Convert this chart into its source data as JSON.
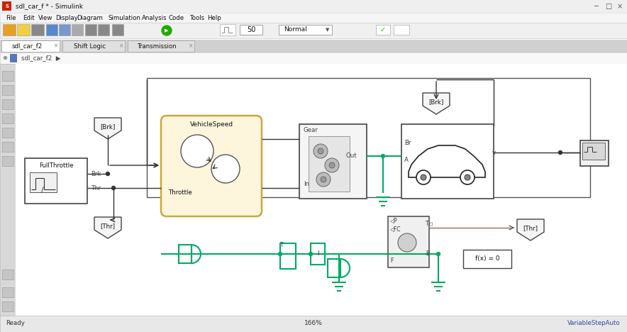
{
  "title": "sdl_car_f * - Simulink",
  "bg_color": "#ffffff",
  "menu_items": [
    "File",
    "Edit",
    "View",
    "Display",
    "Diagram",
    "Simulation",
    "Analysis",
    "Code",
    "Tools",
    "Help"
  ],
  "tabs": [
    "sdl_car_f2",
    "Shift Logic",
    "Transmission"
  ],
  "status_left": "Ready",
  "status_center": "166%",
  "status_right": "VariableStepAuto",
  "signal_green": "#00aa66",
  "wire_black": "#333333"
}
